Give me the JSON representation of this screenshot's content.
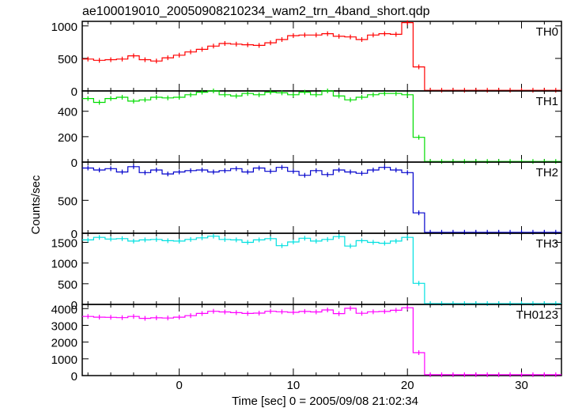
{
  "title": "ae100019010_20050908210234_wam2_trn_4band_short.qdp",
  "xlabel": "Time [sec] 0 = 2005/09/08 21:02:34",
  "ylabel": "Counts/sec",
  "chart_data": [
    {
      "type": "line",
      "name": "TH0",
      "color": "#ff0000",
      "ylim": [
        0,
        1070
      ],
      "yticks": [
        0,
        500,
        1000
      ],
      "xlim": [
        -8.5,
        33.5
      ],
      "xticks": [
        0,
        10,
        20,
        30
      ],
      "x": [
        -8,
        -7,
        -6,
        -5,
        -4,
        -3,
        -2,
        -1,
        0,
        1,
        2,
        3,
        4,
        5,
        6,
        7,
        8,
        9,
        10,
        11,
        12,
        13,
        14,
        15,
        16,
        17,
        18,
        19,
        20,
        21,
        22,
        23,
        24,
        25,
        26,
        27,
        28,
        29,
        30,
        31,
        32,
        33
      ],
      "values": [
        490,
        470,
        480,
        490,
        540,
        480,
        460,
        510,
        550,
        600,
        640,
        690,
        730,
        720,
        710,
        700,
        740,
        790,
        850,
        860,
        860,
        880,
        840,
        830,
        790,
        860,
        880,
        870,
        1050,
        370,
        10,
        10,
        10,
        10,
        10,
        10,
        10,
        10,
        10,
        10,
        10,
        10
      ]
    },
    {
      "type": "line",
      "name": "TH1",
      "color": "#00dd00",
      "ylim": [
        0,
        560
      ],
      "yticks": [
        0,
        200,
        400
      ],
      "xlim": [
        -8.5,
        33.5
      ],
      "xticks": [
        0,
        10,
        20,
        30
      ],
      "x": [
        -8,
        -7,
        -6,
        -5,
        -4,
        -3,
        -2,
        -1,
        0,
        1,
        2,
        3,
        4,
        5,
        6,
        7,
        8,
        9,
        10,
        11,
        12,
        13,
        14,
        15,
        16,
        17,
        18,
        19,
        20,
        21,
        22,
        23,
        24,
        25,
        26,
        27,
        28,
        29,
        30,
        31,
        32,
        33
      ],
      "values": [
        500,
        470,
        500,
        510,
        480,
        490,
        510,
        505,
        510,
        530,
        550,
        560,
        530,
        520,
        540,
        530,
        550,
        545,
        530,
        550,
        530,
        560,
        520,
        490,
        510,
        530,
        540,
        540,
        530,
        195,
        5,
        5,
        5,
        5,
        5,
        5,
        5,
        5,
        5,
        5,
        5,
        5
      ]
    },
    {
      "type": "line",
      "name": "TH2",
      "color": "#0000cc",
      "ylim": [
        0,
        1080
      ],
      "yticks": [
        0,
        500
      ],
      "xlim": [
        -8.5,
        33.5
      ],
      "xticks": [
        0,
        10,
        20,
        30
      ],
      "x": [
        -8,
        -7,
        -6,
        -5,
        -4,
        -3,
        -2,
        -1,
        0,
        1,
        2,
        3,
        4,
        5,
        6,
        7,
        8,
        9,
        10,
        11,
        12,
        13,
        14,
        15,
        16,
        17,
        18,
        19,
        20,
        21,
        22,
        23,
        24,
        25,
        26,
        27,
        28,
        29,
        30,
        31,
        32,
        33
      ],
      "values": [
        990,
        960,
        980,
        930,
        1010,
        920,
        960,
        900,
        930,
        950,
        960,
        930,
        950,
        980,
        930,
        990,
        940,
        1000,
        940,
        880,
        950,
        890,
        960,
        930,
        910,
        960,
        1000,
        960,
        920,
        310,
        15,
        15,
        15,
        15,
        15,
        15,
        15,
        15,
        15,
        15,
        15,
        15
      ]
    },
    {
      "type": "line",
      "name": "TH3",
      "color": "#00e0e0",
      "ylim": [
        0,
        1720
      ],
      "yticks": [
        0,
        500,
        1000,
        1500
      ],
      "xlim": [
        -8.5,
        33.5
      ],
      "xticks": [
        0,
        10,
        20,
        30
      ],
      "x": [
        -8,
        -7,
        -6,
        -5,
        -4,
        -3,
        -2,
        -1,
        0,
        1,
        2,
        3,
        4,
        5,
        6,
        7,
        8,
        9,
        10,
        11,
        12,
        13,
        14,
        15,
        16,
        17,
        18,
        19,
        20,
        21,
        22,
        23,
        24,
        25,
        26,
        27,
        28,
        29,
        30,
        31,
        32,
        33
      ],
      "values": [
        1560,
        1620,
        1580,
        1590,
        1530,
        1560,
        1570,
        1540,
        1530,
        1570,
        1610,
        1650,
        1570,
        1560,
        1500,
        1560,
        1590,
        1420,
        1510,
        1600,
        1530,
        1570,
        1640,
        1410,
        1540,
        1500,
        1480,
        1530,
        1620,
        510,
        20,
        20,
        20,
        20,
        20,
        20,
        20,
        20,
        20,
        20,
        20,
        20
      ]
    },
    {
      "type": "line",
      "name": "TH0123",
      "color": "#ff00ff",
      "ylim": [
        0,
        4250
      ],
      "yticks": [
        0,
        1000,
        2000,
        3000,
        4000
      ],
      "xlim": [
        -8.5,
        33.5
      ],
      "xticks": [
        0,
        10,
        20,
        30
      ],
      "x": [
        -8,
        -7,
        -6,
        -5,
        -4,
        -3,
        -2,
        -1,
        0,
        1,
        2,
        3,
        4,
        5,
        6,
        7,
        8,
        9,
        10,
        11,
        12,
        13,
        14,
        15,
        16,
        17,
        18,
        19,
        20,
        21,
        22,
        23,
        24,
        25,
        26,
        27,
        28,
        29,
        30,
        31,
        32,
        33
      ],
      "values": [
        3530,
        3490,
        3480,
        3460,
        3530,
        3420,
        3450,
        3440,
        3490,
        3580,
        3710,
        3840,
        3800,
        3760,
        3710,
        3730,
        3840,
        3810,
        3780,
        3830,
        3800,
        3920,
        3700,
        4020,
        3720,
        3810,
        3830,
        3900,
        4050,
        1370,
        50,
        50,
        50,
        50,
        50,
        50,
        50,
        50,
        50,
        50,
        50,
        50
      ]
    }
  ]
}
